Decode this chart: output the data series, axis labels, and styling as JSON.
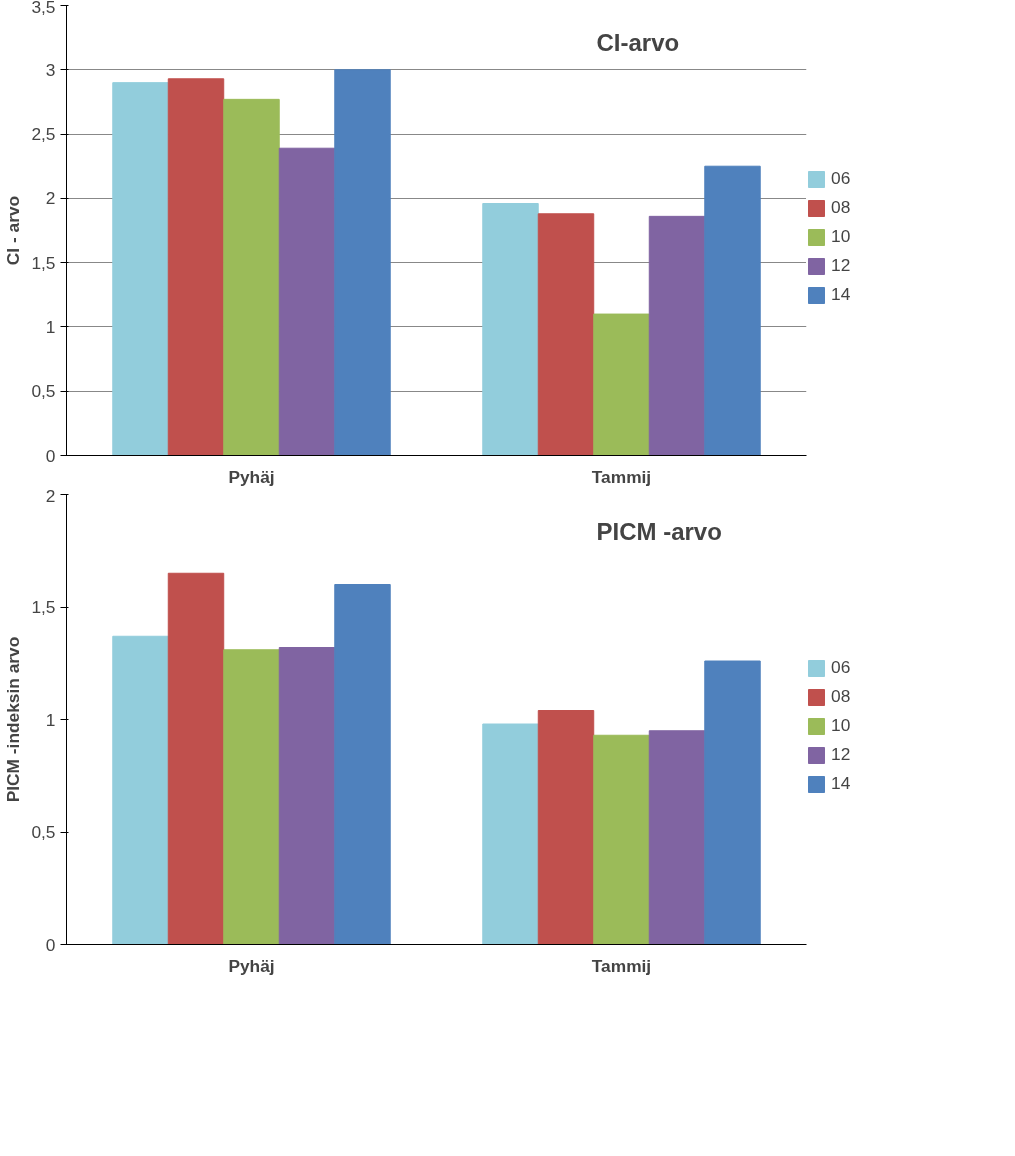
{
  "chart_data": [
    {
      "type": "bar",
      "title": "CI-arvo",
      "ylabel": "CI - arvo",
      "categories": [
        "Pyhäj",
        "Tammij"
      ],
      "series": [
        {
          "name": "06",
          "color": "#92cddc",
          "values": [
            2.9,
            1.96
          ]
        },
        {
          "name": "08",
          "color": "#c0504d",
          "values": [
            2.93,
            1.88
          ]
        },
        {
          "name": "10",
          "color": "#9bbb59",
          "values": [
            2.77,
            1.1
          ]
        },
        {
          "name": "12",
          "color": "#8064a2",
          "values": [
            2.39,
            1.86
          ]
        },
        {
          "name": "14",
          "color": "#4f81bd",
          "values": [
            3.0,
            2.25
          ]
        }
      ],
      "ylim": [
        0,
        3.5
      ],
      "yticks": [
        0,
        {
          "value": 0.5,
          "label": "0,5"
        },
        1,
        {
          "value": 1.5,
          "label": "1,5"
        },
        2,
        {
          "value": 2.5,
          "label": "2,5"
        },
        3,
        {
          "value": 3.5,
          "label": "3,5"
        }
      ],
      "grid": "y",
      "legend": "right"
    },
    {
      "type": "bar",
      "title": "PICM -arvo",
      "ylabel": "PICM -indeksin arvo",
      "categories": [
        "Pyhäj",
        "Tammij"
      ],
      "series": [
        {
          "name": "06",
          "color": "#92cddc",
          "values": [
            1.37,
            0.98
          ]
        },
        {
          "name": "08",
          "color": "#c0504d",
          "values": [
            1.65,
            1.04
          ]
        },
        {
          "name": "10",
          "color": "#9bbb59",
          "values": [
            1.31,
            0.93
          ]
        },
        {
          "name": "12",
          "color": "#8064a2",
          "values": [
            1.32,
            0.95
          ]
        },
        {
          "name": "14",
          "color": "#4f81bd",
          "values": [
            1.6,
            1.26
          ]
        }
      ],
      "ylim": [
        0,
        2
      ],
      "yticks": [
        0,
        {
          "value": 0.5,
          "label": "0,5"
        },
        1,
        {
          "value": 1.5,
          "label": "1,5"
        },
        2
      ],
      "grid": false,
      "legend": "right"
    }
  ]
}
